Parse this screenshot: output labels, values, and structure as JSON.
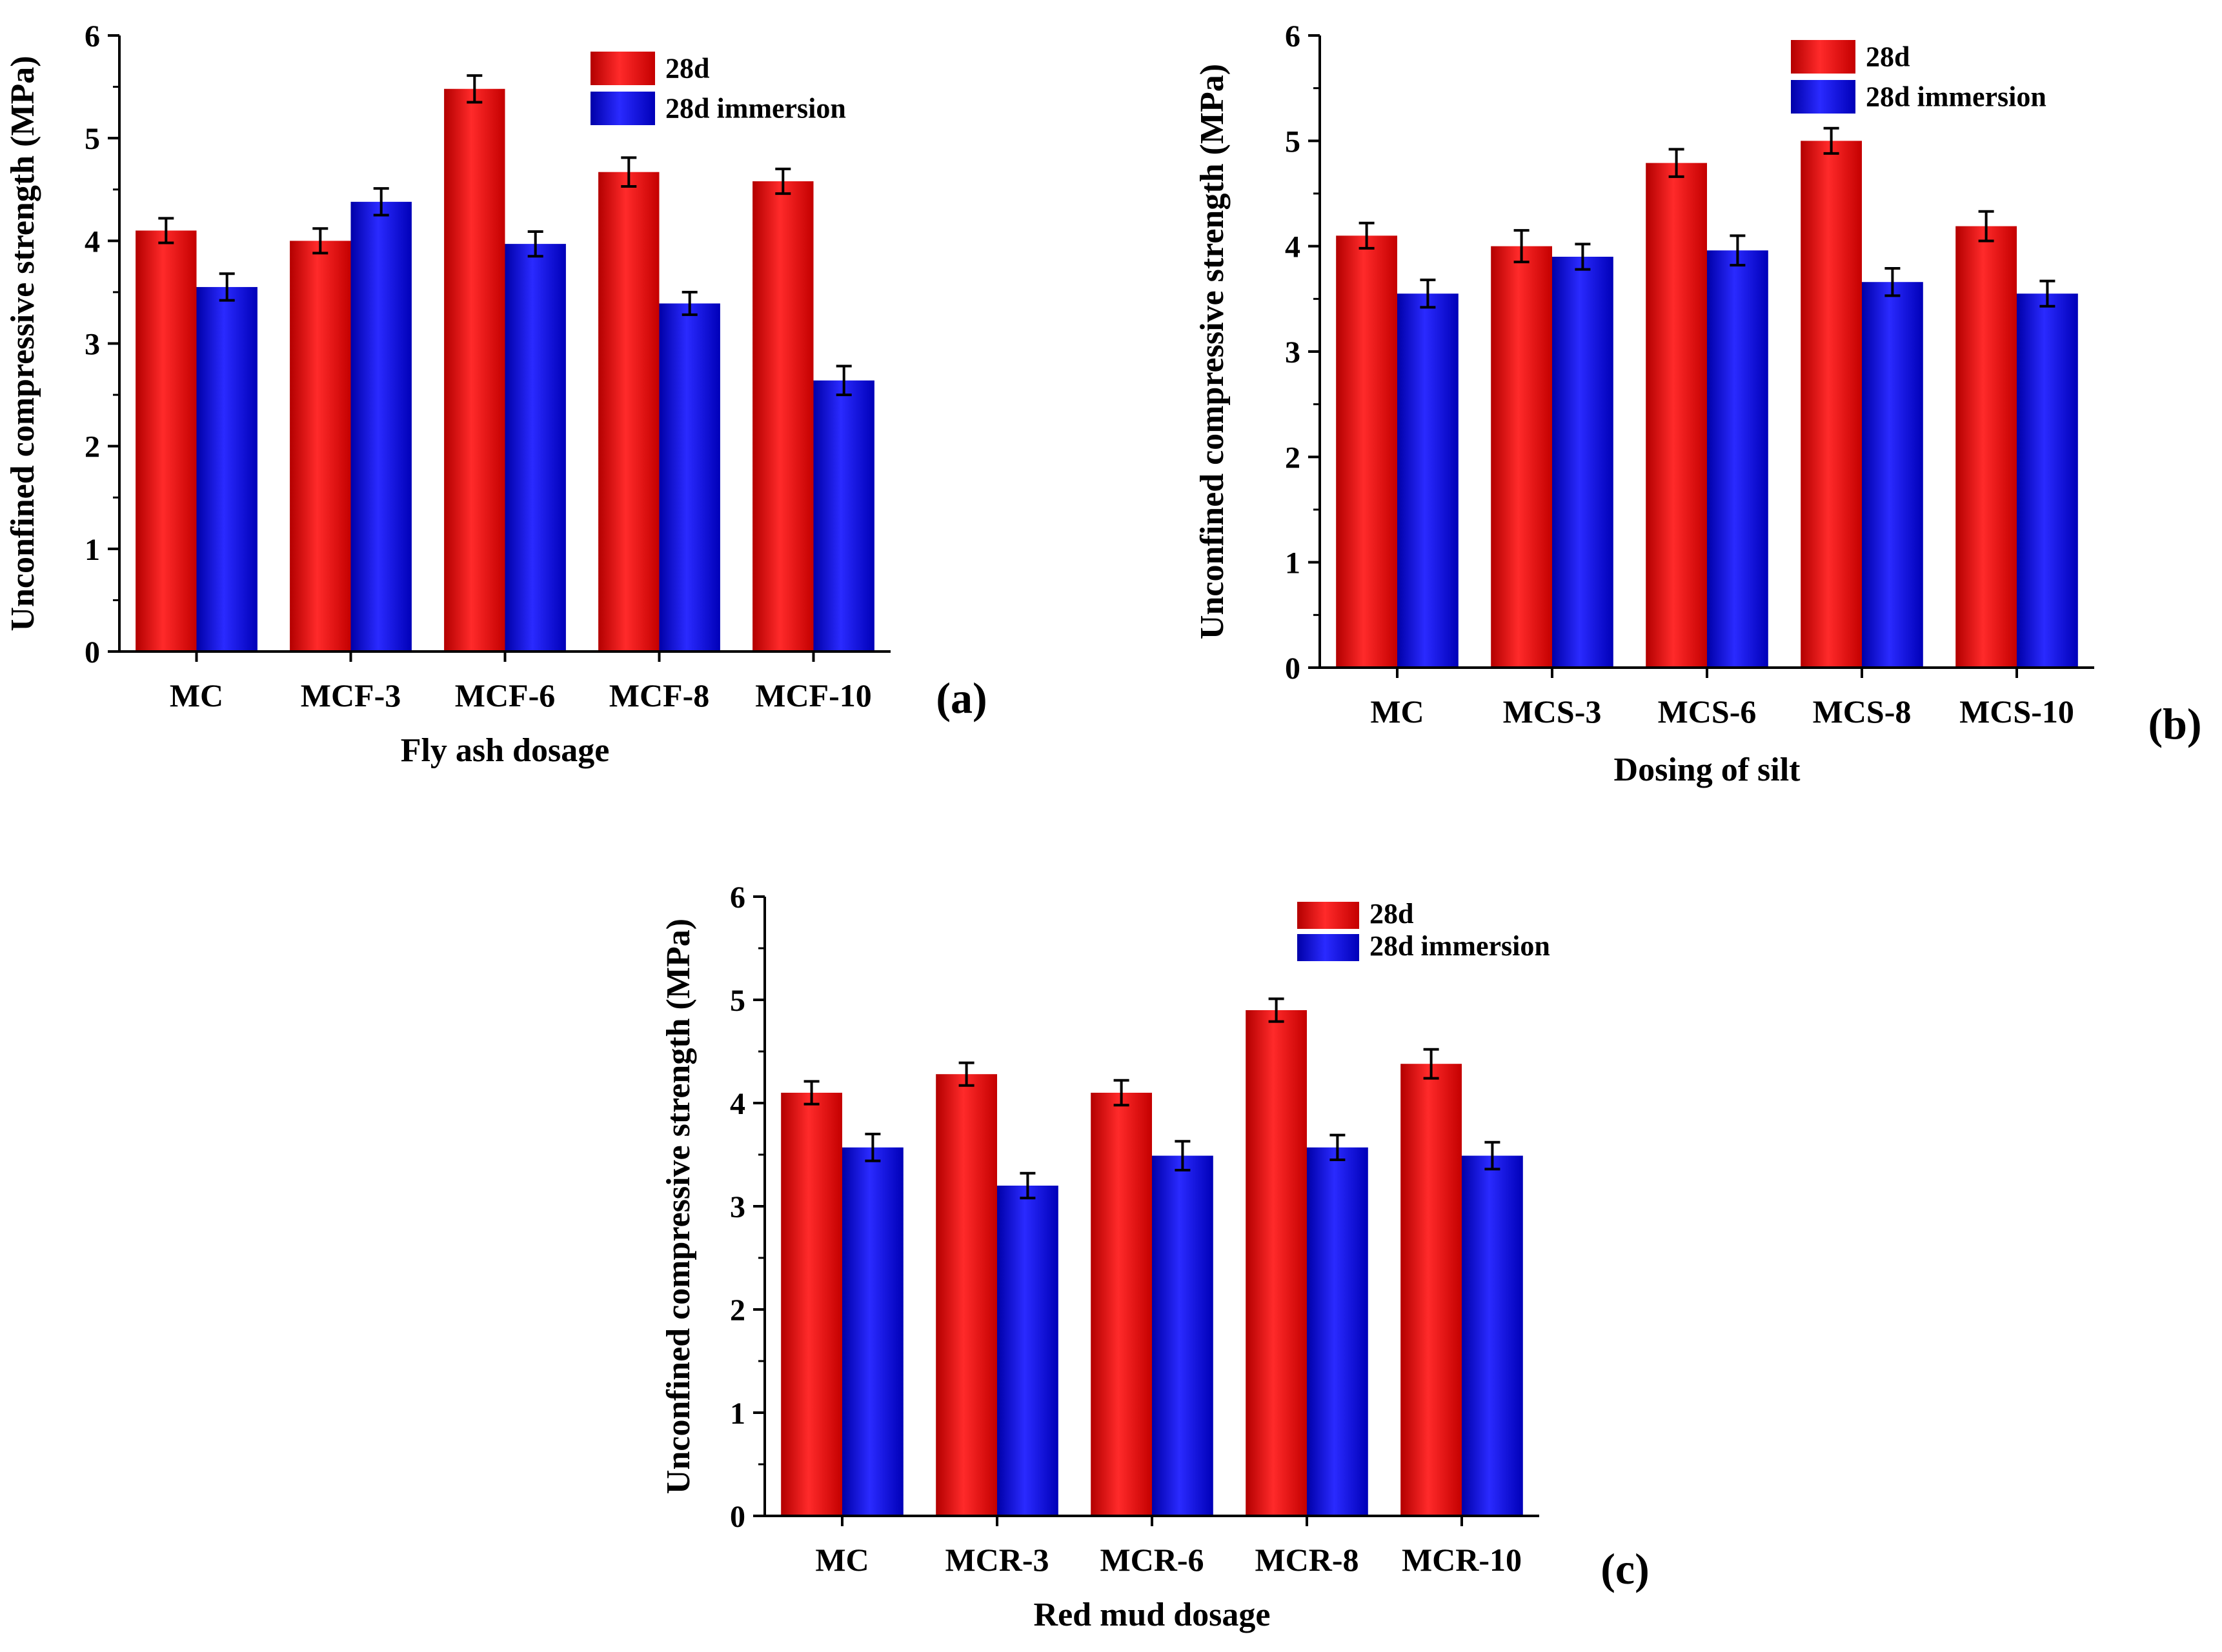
{
  "figure": {
    "colors": {
      "series_28d": "#ff1a1a",
      "series_28d_immersion": "#1a1aff",
      "axis": "#000000"
    }
  },
  "chart_data": [
    {
      "panel_label": "(a)",
      "type": "bar",
      "categories": [
        "MC",
        "MCF-3",
        "MCF-6",
        "MCF-8",
        "MCF-10"
      ],
      "xlabel": "Fly ash dosage",
      "ylabel": "Unconfined compressive strength (MPa)",
      "ylim": [
        0,
        6
      ],
      "yticks": [
        "0",
        "1",
        "2",
        "3",
        "4",
        "5",
        "6"
      ],
      "legend_position": "top-right",
      "series": [
        {
          "name": "28d",
          "values": [
            4.1,
            4.0,
            5.48,
            4.67,
            4.58
          ],
          "errors": [
            0.12,
            0.12,
            0.13,
            0.14,
            0.12
          ],
          "color": "#ff1a1a"
        },
        {
          "name": "28d immersion",
          "values": [
            3.55,
            4.38,
            3.97,
            3.39,
            2.64
          ],
          "errors": [
            0.13,
            0.13,
            0.12,
            0.11,
            0.14
          ],
          "color": "#1a1aff"
        }
      ]
    },
    {
      "panel_label": "(b)",
      "type": "bar",
      "categories": [
        "MC",
        "MCS-3",
        "MCS-6",
        "MCS-8",
        "MCS-10"
      ],
      "xlabel": "Dosing of silt",
      "ylabel": "Unconfined compressive strength (MPa)",
      "ylim": [
        0,
        6
      ],
      "yticks": [
        "0",
        "1",
        "2",
        "3",
        "4",
        "5",
        "6"
      ],
      "legend_position": "top-right",
      "series": [
        {
          "name": "28d",
          "values": [
            4.1,
            4.0,
            4.79,
            5.0,
            4.19
          ],
          "errors": [
            0.12,
            0.15,
            0.13,
            0.12,
            0.14
          ],
          "color": "#ff1a1a"
        },
        {
          "name": "28d immersion",
          "values": [
            3.55,
            3.9,
            3.96,
            3.66,
            3.55
          ],
          "errors": [
            0.13,
            0.12,
            0.14,
            0.13,
            0.12
          ],
          "color": "#1a1aff"
        }
      ]
    },
    {
      "panel_label": "(c)",
      "type": "bar",
      "categories": [
        "MC",
        "MCR-3",
        "MCR-6",
        "MCR-8",
        "MCR-10"
      ],
      "xlabel": "Red mud dosage",
      "ylabel": "Unconfined compressive strength (MPa)",
      "ylim": [
        0,
        6
      ],
      "yticks": [
        "0",
        "1",
        "2",
        "3",
        "4",
        "5",
        "6"
      ],
      "legend_position": "top-right",
      "series": [
        {
          "name": "28d",
          "values": [
            4.1,
            4.28,
            4.1,
            4.9,
            4.38
          ],
          "errors": [
            0.11,
            0.11,
            0.12,
            0.11,
            0.14
          ],
          "color": "#ff1a1a"
        },
        {
          "name": "28d immersion",
          "values": [
            3.57,
            3.2,
            3.49,
            3.57,
            3.49
          ],
          "errors": [
            0.13,
            0.12,
            0.14,
            0.12,
            0.13
          ],
          "color": "#1a1aff"
        }
      ]
    }
  ]
}
